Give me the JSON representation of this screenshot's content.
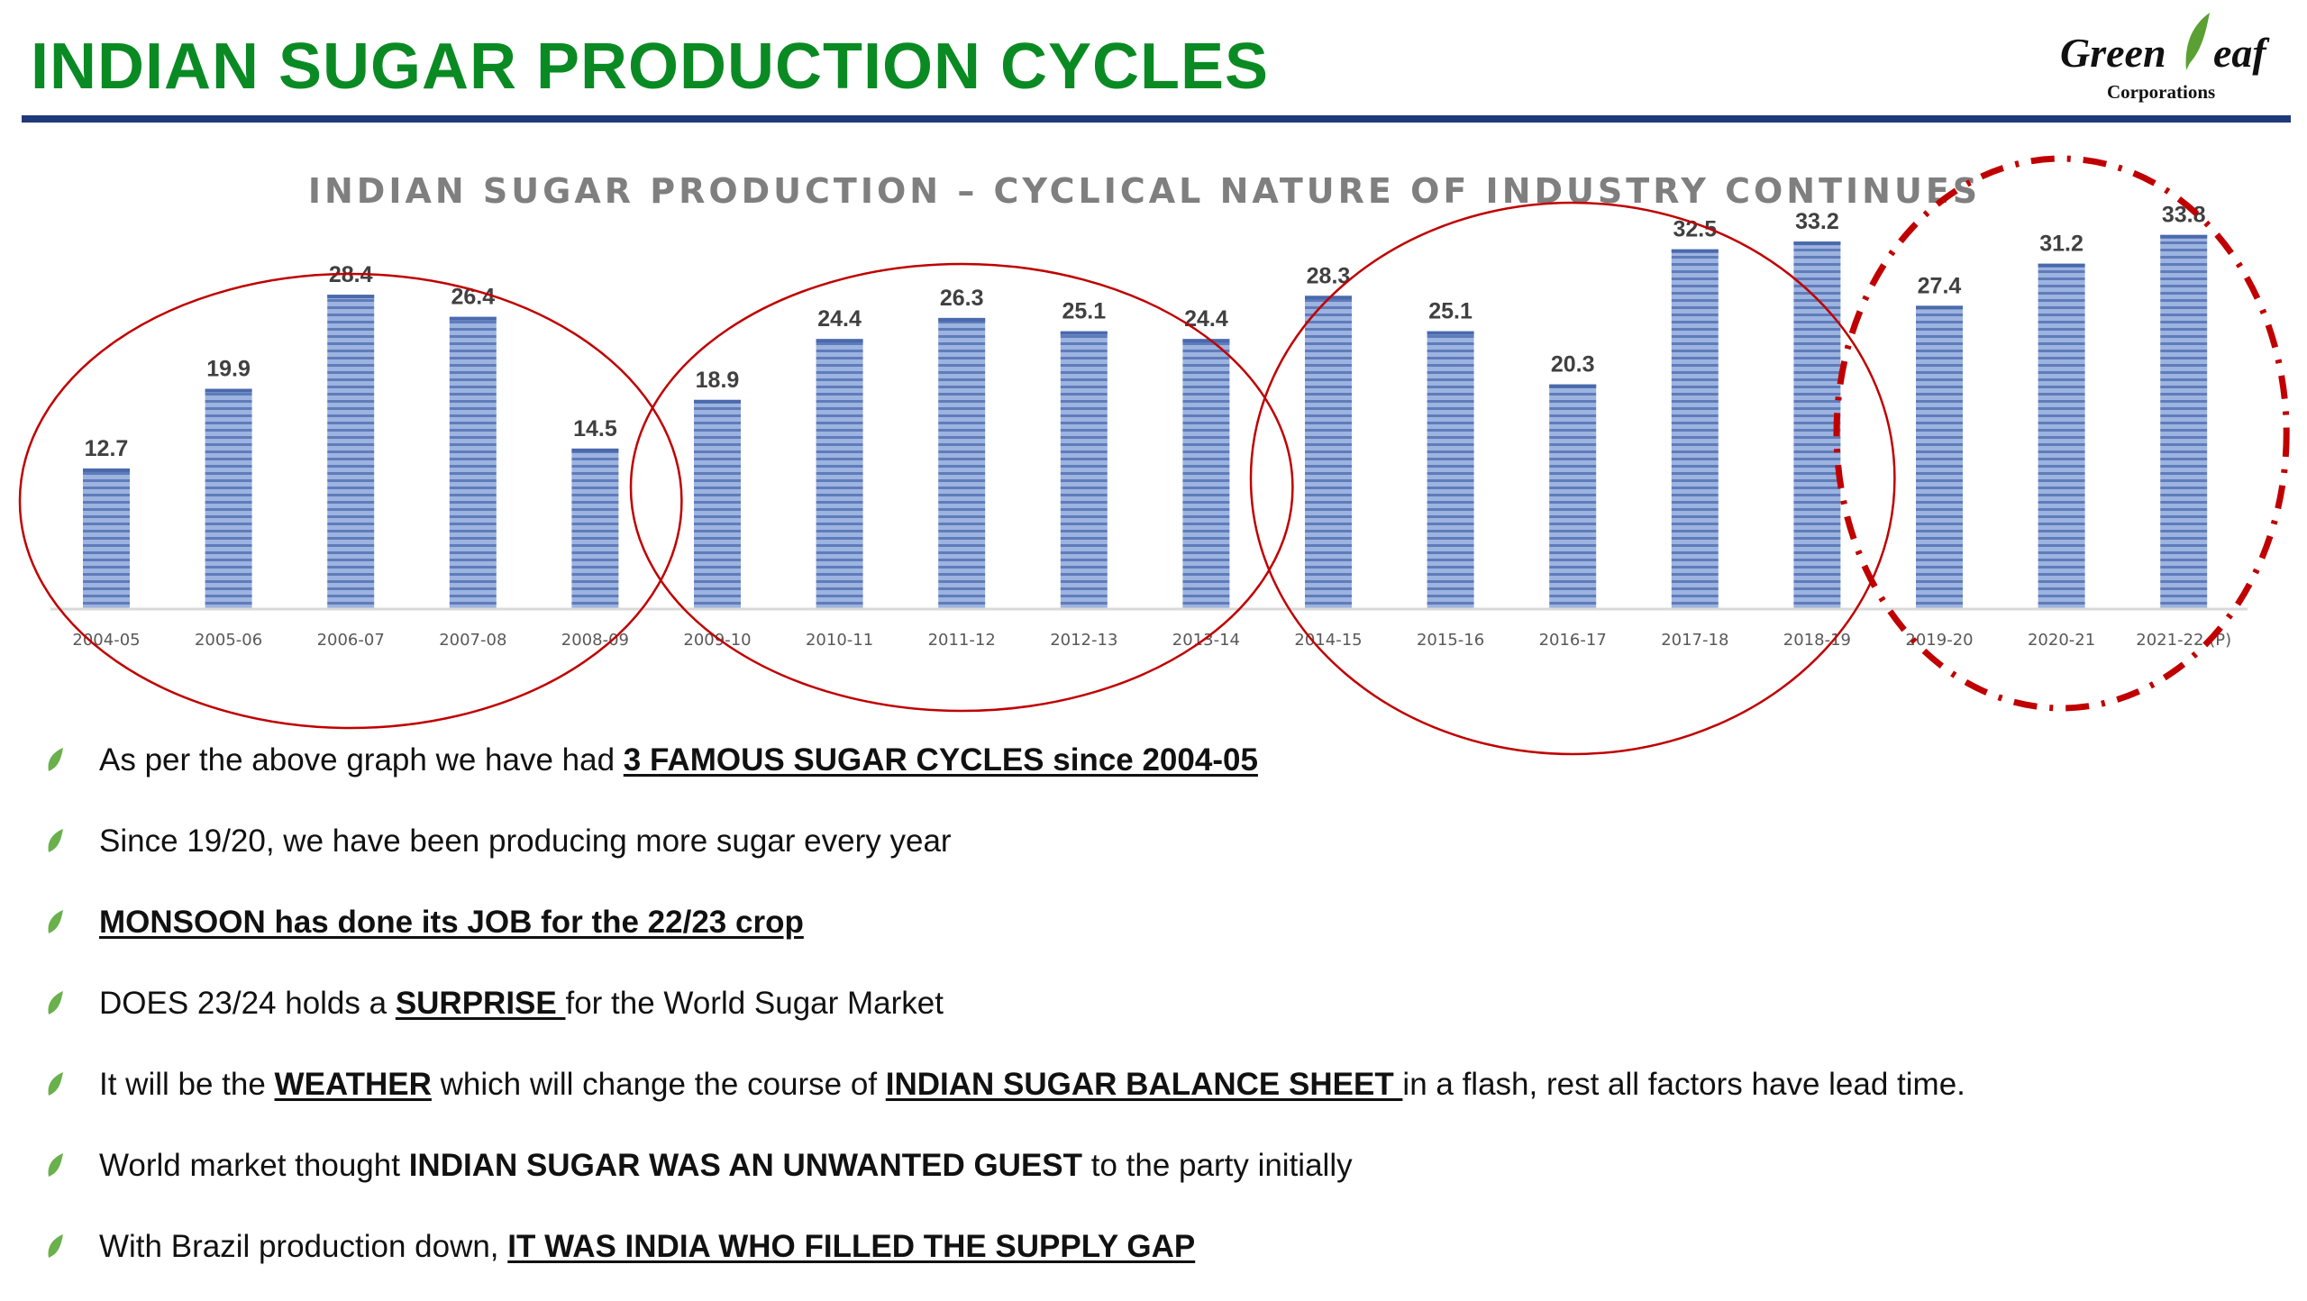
{
  "slide": {
    "title": "INDIAN SUGAR PRODUCTION CYCLES",
    "title_color": "#0a8a23",
    "rule_color": "#1f3a7a"
  },
  "logo": {
    "word_part1": "Green",
    "word_part2": "eaf",
    "subtitle": "Corporations",
    "leaf_color": "#5aa032"
  },
  "chart_data": {
    "type": "bar",
    "title": "INDIAN SUGAR PRODUCTION – CYCLICAL NATURE OF INDUSTRY CONTINUES",
    "categories": [
      "2004-05",
      "2005-06",
      "2006-07",
      "2007-08",
      "2008-09",
      "2009-10",
      "2010-11",
      "2011-12",
      "2012-13",
      "2013-14",
      "2014-15",
      "2015-16",
      "2016-17",
      "2017-18",
      "2018-19",
      "2019-20",
      "2020-21",
      "2021-22 (P)"
    ],
    "values": [
      12.7,
      19.9,
      28.4,
      26.4,
      14.5,
      18.9,
      24.4,
      26.3,
      25.1,
      24.4,
      28.3,
      25.1,
      20.3,
      32.5,
      33.2,
      27.4,
      31.2,
      33.8
    ],
    "xlabel": "",
    "ylabel": "",
    "ylim": [
      0,
      35
    ],
    "grid": false,
    "legend": "none",
    "bar_color": "#8fa8d8",
    "bar_stripe_color": "#5d7ab8",
    "annotations": [
      {
        "type": "ellipse",
        "covers": [
          "2004-05",
          "2008-09"
        ],
        "color": "#c00000",
        "style": "solid"
      },
      {
        "type": "ellipse",
        "covers": [
          "2009-10",
          "2013-14"
        ],
        "color": "#c00000",
        "style": "solid"
      },
      {
        "type": "ellipse",
        "covers": [
          "2014-15",
          "2018-19"
        ],
        "color": "#c00000",
        "style": "solid"
      },
      {
        "type": "ellipse",
        "covers": [
          "2019-20",
          "2021-22 (P)"
        ],
        "color": "#c00000",
        "style": "dash-dot"
      }
    ]
  },
  "bullets": [
    {
      "parts": [
        {
          "text": "As per the above graph we have had ",
          "bold": false,
          "underline": false
        },
        {
          "text": "3 FAMOUS SUGAR CYCLES since 2004-05",
          "bold": true,
          "underline": true
        }
      ]
    },
    {
      "parts": [
        {
          "text": "Since 19/20, we have been producing more sugar every year",
          "bold": false,
          "underline": false
        }
      ]
    },
    {
      "parts": [
        {
          "text": "MONSOON has done its JOB for the 22/23 crop",
          "bold": true,
          "underline": true
        }
      ]
    },
    {
      "parts": [
        {
          "text": "DOES 23/24 holds a ",
          "bold": false,
          "underline": false
        },
        {
          "text": "SURPRISE ",
          "bold": true,
          "underline": true
        },
        {
          "text": "for the World Sugar Market",
          "bold": false,
          "underline": false
        }
      ]
    },
    {
      "parts": [
        {
          "text": "It will be the ",
          "bold": false,
          "underline": false
        },
        {
          "text": "WEATHER",
          "bold": true,
          "underline": true
        },
        {
          "text": " which will change the course of ",
          "bold": false,
          "underline": false
        },
        {
          "text": "INDIAN SUGAR BALANCE SHEET ",
          "bold": true,
          "underline": true
        },
        {
          "text": "in a flash, rest all factors have lead time.",
          "bold": false,
          "underline": false
        }
      ]
    },
    {
      "parts": [
        {
          "text": "World market thought ",
          "bold": false,
          "underline": false
        },
        {
          "text": "INDIAN SUGAR WAS AN UNWANTED GUEST",
          "bold": true,
          "underline": false
        },
        {
          "text": " to the party initially",
          "bold": false,
          "underline": false
        }
      ]
    },
    {
      "parts": [
        {
          "text": "With Brazil production down, ",
          "bold": false,
          "underline": false
        },
        {
          "text": "IT WAS INDIA WHO FILLED THE SUPPLY GAP",
          "bold": true,
          "underline": true
        }
      ]
    }
  ],
  "bullet_icon": "leaf-bullet-icon"
}
